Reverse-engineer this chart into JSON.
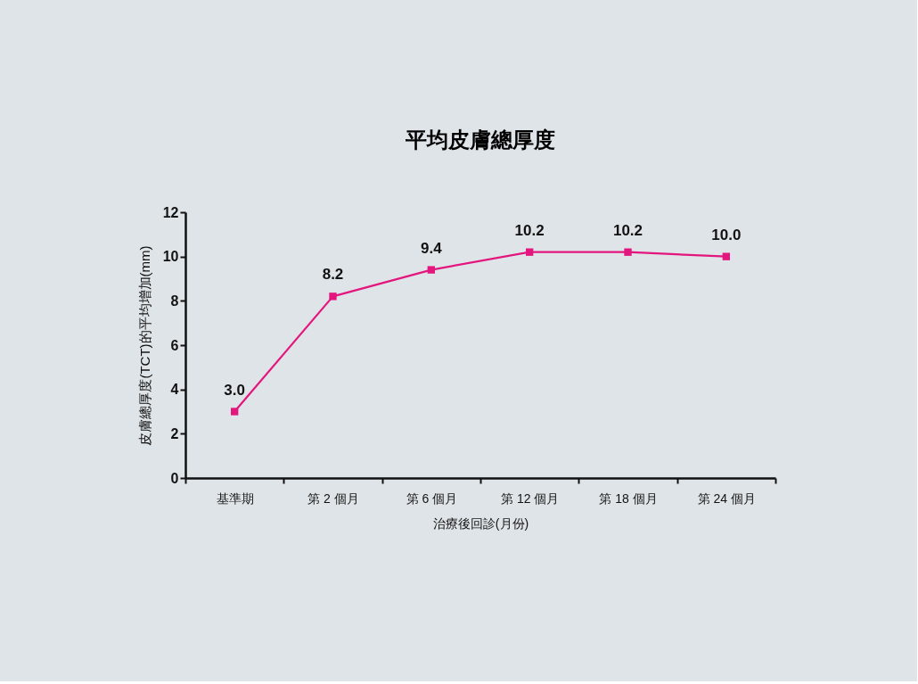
{
  "chart_data": {
    "type": "line",
    "title": "平均皮膚總厚度",
    "xlabel": "治療後回診(月份)",
    "ylabel": "皮膚總厚度(TCT)的平均增加(mm)",
    "categories": [
      "基準期",
      "第 2 個月",
      "第 6 個月",
      "第 12 個月",
      "第 18 個月",
      "第 24 個月"
    ],
    "series": [
      {
        "color": "#e3167e",
        "values": [
          3.0,
          8.2,
          9.4,
          10.2,
          10.2,
          10.0
        ],
        "value_labels": [
          "3.0",
          "8.2",
          "9.4",
          "10.2",
          "10.2",
          "10.0"
        ]
      }
    ],
    "ylim": [
      0,
      12
    ],
    "yticks": [
      0,
      2,
      4,
      6,
      8,
      10,
      12
    ],
    "grid": false,
    "marker": "square",
    "line_style": "solid"
  }
}
